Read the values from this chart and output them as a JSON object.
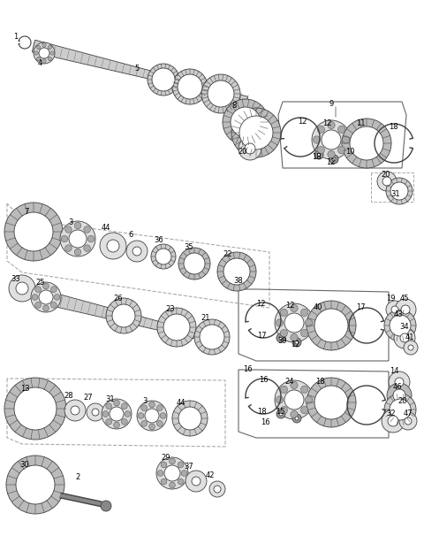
{
  "bg_color": "#ffffff",
  "line_color": "#404040",
  "figsize": [
    4.8,
    6.32
  ],
  "dpi": 100
}
